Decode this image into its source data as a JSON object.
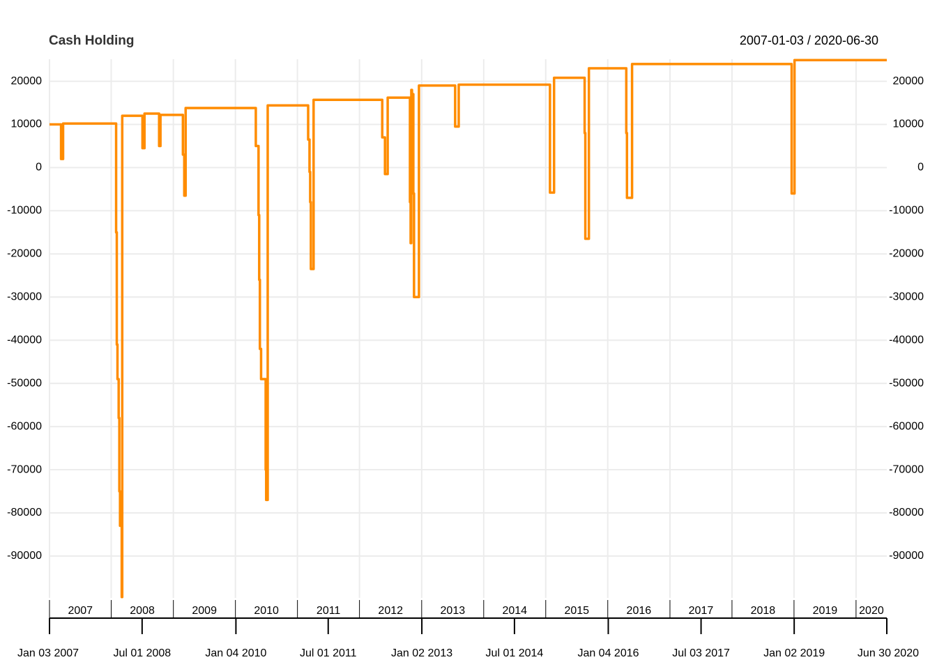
{
  "chart_data": {
    "type": "step-line",
    "title": "Cash Holding",
    "date_range": "2007-01-03 / 2020-06-30",
    "x": [
      "2007-01-03",
      "2007-03-12",
      "2007-03-24",
      "2008-01-30",
      "2008-02-03",
      "2008-02-07",
      "2008-02-14",
      "2008-02-18",
      "2008-02-22",
      "2008-03-03",
      "2008-03-06",
      "2008-07-03",
      "2008-07-15",
      "2008-10-09",
      "2008-10-17",
      "2009-02-26",
      "2009-03-06",
      "2009-03-14",
      "2010-05-01",
      "2010-05-17",
      "2010-05-21",
      "2010-05-25",
      "2010-06-01",
      "2010-06-28",
      "2010-07-01",
      "2010-07-10",
      "2011-03-05",
      "2011-03-13",
      "2011-03-17",
      "2011-03-21",
      "2011-04-06",
      "2012-05-14",
      "2012-05-30",
      "2012-06-15",
      "2012-10-24",
      "2012-10-28",
      "2012-11-01",
      "2012-11-05",
      "2012-11-13",
      "2012-11-17",
      "2012-12-16",
      "2013-07-17",
      "2013-08-07",
      "2015-01-26",
      "2015-02-19",
      "2015-08-18",
      "2015-08-22",
      "2015-09-12",
      "2016-04-19",
      "2016-04-23",
      "2016-05-23",
      "2018-12-18",
      "2019-01-04",
      "2020-06-30"
    ],
    "series": [
      {
        "color": "#ff8c00",
        "values": [
          10000,
          2000,
          10200,
          -15000,
          -41000,
          -49000,
          -58000,
          -75000,
          -83000,
          -99500,
          12000,
          4500,
          12500,
          5000,
          12200,
          3000,
          -6500,
          13800,
          5000,
          -11000,
          -26000,
          -42000,
          -49000,
          -70000,
          -77000,
          14400,
          6500,
          -1000,
          -8000,
          -23500,
          15700,
          7000,
          -1500,
          16200,
          -8000,
          -17500,
          18000,
          17000,
          -6000,
          -30000,
          19000,
          9500,
          19200,
          -5800,
          20800,
          8000,
          -16500,
          23000,
          8000,
          -7000,
          24000,
          -6000,
          24900,
          24900
        ]
      }
    ],
    "xlim": [
      "2007-01-03",
      "2020-06-30"
    ],
    "ylim": [
      -99700,
      25100
    ],
    "yticks": [
      -90000,
      -80000,
      -70000,
      -60000,
      -50000,
      -40000,
      -30000,
      -20000,
      -10000,
      0,
      10000,
      20000
    ],
    "year_ticks": [
      {
        "value": "2007-01-03",
        "label": "2007"
      },
      {
        "value": "2008-01-01",
        "label": "2008"
      },
      {
        "value": "2009-01-01",
        "label": "2009"
      },
      {
        "value": "2010-01-01",
        "label": "2010"
      },
      {
        "value": "2011-01-01",
        "label": "2011"
      },
      {
        "value": "2012-01-01",
        "label": "2012"
      },
      {
        "value": "2013-01-01",
        "label": "2013"
      },
      {
        "value": "2014-01-01",
        "label": "2014"
      },
      {
        "value": "2015-01-01",
        "label": "2015"
      },
      {
        "value": "2016-01-01",
        "label": "2016"
      },
      {
        "value": "2017-01-01",
        "label": "2017"
      },
      {
        "value": "2018-01-01",
        "label": "2018"
      },
      {
        "value": "2019-01-01",
        "label": "2019"
      },
      {
        "value": "2020-01-01",
        "label": "2020"
      }
    ],
    "xticks": [
      {
        "value": "2007-01-03",
        "label": "Jan 03 2007"
      },
      {
        "value": "2008-07-01",
        "label": "Jul 01 2008"
      },
      {
        "value": "2010-01-04",
        "label": "Jan 04 2010"
      },
      {
        "value": "2011-07-01",
        "label": "Jul 01 2011"
      },
      {
        "value": "2013-01-02",
        "label": "Jan 02 2013"
      },
      {
        "value": "2014-07-01",
        "label": "Jul 01 2014"
      },
      {
        "value": "2016-01-04",
        "label": "Jan 04 2016"
      },
      {
        "value": "2017-07-03",
        "label": "Jul 03 2017"
      },
      {
        "value": "2019-01-02",
        "label": "Jan 02 2019"
      },
      {
        "value": "2020-06-30",
        "label": "Jun 30 2020"
      }
    ],
    "grid": true
  }
}
